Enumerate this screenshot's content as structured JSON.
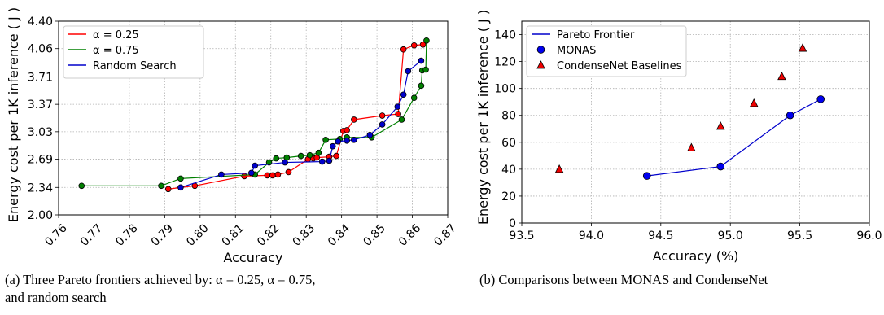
{
  "captions": {
    "a_line1": "(a) Three Pareto frontiers achieved by: α = 0.25, α = 0.75,",
    "a_line2": "and random search",
    "b_line1": "(b) Comparisons between MONAS and CondenseNet"
  },
  "chart_data": [
    {
      "type": "line",
      "xlabel": "Accuracy",
      "ylabel": "Energy cost per 1K inference ( J )",
      "xlim": [
        0.76,
        0.87
      ],
      "ylim": [
        2.0,
        4.4
      ],
      "xticks": [
        "0.76",
        "0.77",
        "0.78",
        "0.79",
        "0.80",
        "0.81",
        "0.82",
        "0.83",
        "0.84",
        "0.85",
        "0.86",
        "0.87"
      ],
      "yticks": [
        "2.00",
        "2.34",
        "2.69",
        "3.03",
        "3.37",
        "3.71",
        "4.06",
        "4.40"
      ],
      "grid": true,
      "legend_position": "top-left",
      "series": [
        {
          "name": "α = 0.25",
          "color": "#ff0000",
          "x": [
            0.791,
            0.7985,
            0.8125,
            0.819,
            0.8205,
            0.822,
            0.825,
            0.8305,
            0.832,
            0.833,
            0.8365,
            0.8385,
            0.8405,
            0.8415,
            0.8435,
            0.8515,
            0.856,
            0.8575,
            0.8605,
            0.863
          ],
          "y": [
            2.32,
            2.36,
            2.48,
            2.49,
            2.49,
            2.5,
            2.53,
            2.69,
            2.7,
            2.71,
            2.72,
            2.73,
            3.04,
            3.05,
            3.18,
            3.23,
            3.25,
            4.05,
            4.1,
            4.11
          ]
        },
        {
          "name": "α = 0.75",
          "color": "#008000",
          "x": [
            0.7665,
            0.789,
            0.7945,
            0.8155,
            0.8195,
            0.8215,
            0.8245,
            0.8285,
            0.831,
            0.8335,
            0.8355,
            0.8395,
            0.8415,
            0.8485,
            0.857,
            0.8605,
            0.8625,
            0.8628,
            0.8638,
            0.864
          ],
          "y": [
            2.36,
            2.36,
            2.45,
            2.5,
            2.65,
            2.7,
            2.71,
            2.73,
            2.74,
            2.77,
            2.93,
            2.94,
            2.96,
            2.96,
            3.18,
            3.45,
            3.6,
            3.79,
            3.8,
            4.16
          ]
        },
        {
          "name": "Random Search",
          "color": "#0000cc",
          "x": [
            0.7945,
            0.806,
            0.8145,
            0.8155,
            0.824,
            0.8345,
            0.8365,
            0.8375,
            0.839,
            0.8415,
            0.8435,
            0.848,
            0.8515,
            0.8558,
            0.8575,
            0.8588,
            0.8625
          ],
          "y": [
            2.34,
            2.5,
            2.52,
            2.61,
            2.65,
            2.66,
            2.67,
            2.85,
            2.91,
            2.92,
            2.93,
            2.99,
            3.12,
            3.34,
            3.49,
            3.78,
            3.91
          ]
        }
      ]
    },
    {
      "type": "scatter",
      "xlabel": "Accuracy (%)",
      "ylabel": "Energy cost per 1K inference ( J )",
      "xlim": [
        93.5,
        96.0
      ],
      "ylim": [
        0,
        150
      ],
      "xticks": [
        "93.5",
        "94.0",
        "94.5",
        "95.0",
        "95.5",
        "96.0"
      ],
      "yticks": [
        "0",
        "20",
        "40",
        "60",
        "80",
        "100",
        "120",
        "140"
      ],
      "grid": true,
      "legend_position": "top-left",
      "series": [
        {
          "name": "Pareto Frontier",
          "kind": "line",
          "color": "#0000cc",
          "x": [
            94.4,
            94.93,
            95.43,
            95.65
          ],
          "y": [
            35,
            42,
            80,
            92
          ]
        },
        {
          "name": "MONAS",
          "kind": "circle",
          "color": "#0000ee",
          "x": [
            94.4,
            94.93,
            95.43,
            95.65
          ],
          "y": [
            35,
            42,
            80,
            92
          ]
        },
        {
          "name": "CondenseNet Baselines",
          "kind": "triangle",
          "color": "#ee0000",
          "x": [
            93.77,
            94.72,
            94.93,
            95.17,
            95.37,
            95.52
          ],
          "y": [
            40,
            56,
            72,
            89,
            109,
            130
          ]
        }
      ]
    }
  ]
}
